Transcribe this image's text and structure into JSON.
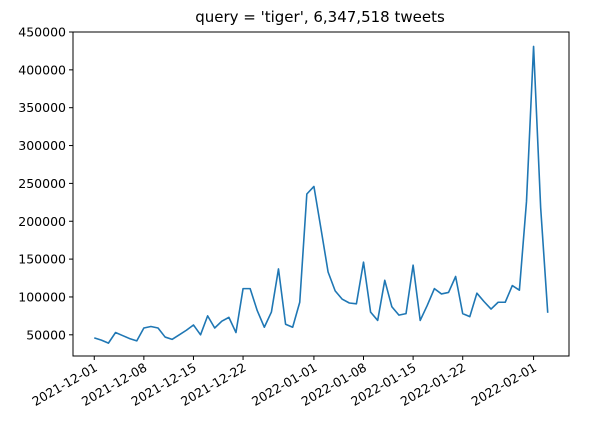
{
  "chart_data": {
    "type": "line",
    "title": "query = 'tiger', 6,347,518 tweets",
    "xlabel": "",
    "ylabel": "",
    "grid": false,
    "line_color": "#1f77b4",
    "xlim": [
      "2021-11-28",
      "2022-02-06"
    ],
    "ylim": [
      22000,
      450000
    ],
    "y_ticks": [
      50000,
      100000,
      150000,
      200000,
      250000,
      300000,
      350000,
      400000,
      450000
    ],
    "x_ticks": [
      "2021-12-01",
      "2021-12-08",
      "2021-12-15",
      "2021-12-22",
      "2022-01-01",
      "2022-01-08",
      "2022-01-15",
      "2022-01-22",
      "2022-02-01"
    ],
    "series": [
      {
        "x": [
          "2021-12-01",
          "2021-12-02",
          "2021-12-03",
          "2021-12-04",
          "2021-12-05",
          "2021-12-06",
          "2021-12-07",
          "2021-12-08",
          "2021-12-09",
          "2021-12-10",
          "2021-12-11",
          "2021-12-12",
          "2021-12-13",
          "2021-12-14",
          "2021-12-15",
          "2021-12-16",
          "2021-12-17",
          "2021-12-18",
          "2021-12-19",
          "2021-12-20",
          "2021-12-21",
          "2021-12-22",
          "2021-12-23",
          "2021-12-24",
          "2021-12-25",
          "2021-12-26",
          "2021-12-27",
          "2021-12-28",
          "2021-12-29",
          "2021-12-30",
          "2021-12-31",
          "2022-01-01",
          "2022-01-02",
          "2022-01-03",
          "2022-01-04",
          "2022-01-05",
          "2022-01-06",
          "2022-01-07",
          "2022-01-08",
          "2022-01-09",
          "2022-01-10",
          "2022-01-11",
          "2022-01-12",
          "2022-01-13",
          "2022-01-14",
          "2022-01-15",
          "2022-01-16",
          "2022-01-17",
          "2022-01-18",
          "2022-01-19",
          "2022-01-20",
          "2022-01-21",
          "2022-01-22",
          "2022-01-23",
          "2022-01-24",
          "2022-01-25",
          "2022-01-26",
          "2022-01-27",
          "2022-01-28",
          "2022-01-29",
          "2022-01-30",
          "2022-01-31",
          "2022-02-01",
          "2022-02-02",
          "2022-02-03"
        ],
        "y": [
          46000,
          43000,
          39000,
          53000,
          49000,
          45000,
          42000,
          59000,
          61000,
          59000,
          47000,
          44000,
          50000,
          56000,
          63000,
          50000,
          75000,
          59000,
          68000,
          73000,
          53000,
          111000,
          111000,
          82000,
          60000,
          80000,
          137000,
          64000,
          60000,
          93000,
          236000,
          246000,
          190000,
          133000,
          108000,
          97000,
          92000,
          91000,
          146000,
          80000,
          69000,
          122000,
          87000,
          76000,
          78000,
          142000,
          69000,
          89000,
          111000,
          104000,
          106000,
          127000,
          78000,
          74000,
          105000,
          94000,
          84000,
          93000,
          93000,
          115000,
          109000,
          226000,
          431000,
          218000,
          79000
        ]
      }
    ]
  }
}
